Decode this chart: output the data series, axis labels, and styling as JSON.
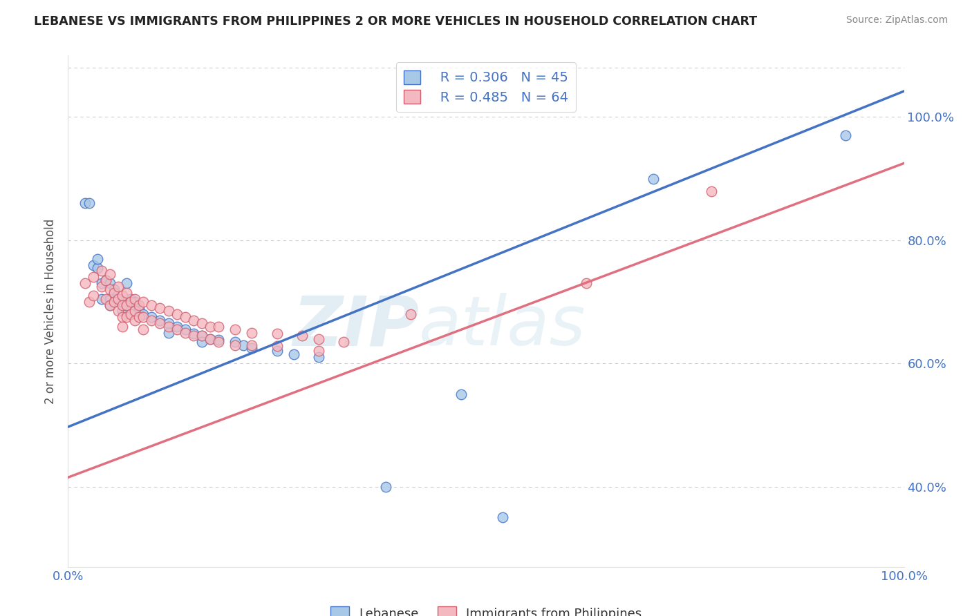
{
  "title": "LEBANESE VS IMMIGRANTS FROM PHILIPPINES 2 OR MORE VEHICLES IN HOUSEHOLD CORRELATION CHART",
  "source": "Source: ZipAtlas.com",
  "ylabel": "2 or more Vehicles in Household",
  "legend_label_1": "Lebanese",
  "legend_label_2": "Immigrants from Philippines",
  "R1": 0.306,
  "N1": 45,
  "R2": 0.485,
  "N2": 64,
  "color_blue": "#A8C8E8",
  "color_pink": "#F4B8C0",
  "line_color_blue": "#4472C4",
  "line_color_pink": "#E07080",
  "dot_edge_blue": "#4472C4",
  "dot_edge_pink": "#D06070",
  "background_color": "#FFFFFF",
  "grid_color": "#CCCCCC",
  "title_color": "#222222",
  "source_color": "#888888",
  "axis_label_color": "#555555",
  "tick_color": "#4472C4",
  "xlim": [
    0.0,
    1.0
  ],
  "ylim": [
    0.27,
    1.1
  ],
  "reg_blue": [
    0.545,
    0.497
  ],
  "reg_pink": [
    0.51,
    0.415
  ],
  "blue_points": [
    [
      0.02,
      0.86
    ],
    [
      0.025,
      0.86
    ],
    [
      0.03,
      0.76
    ],
    [
      0.035,
      0.755
    ],
    [
      0.035,
      0.77
    ],
    [
      0.04,
      0.73
    ],
    [
      0.04,
      0.705
    ],
    [
      0.045,
      0.735
    ],
    [
      0.05,
      0.73
    ],
    [
      0.05,
      0.705
    ],
    [
      0.05,
      0.695
    ],
    [
      0.055,
      0.72
    ],
    [
      0.055,
      0.7
    ],
    [
      0.06,
      0.705
    ],
    [
      0.065,
      0.7
    ],
    [
      0.065,
      0.685
    ],
    [
      0.07,
      0.73
    ],
    [
      0.07,
      0.695
    ],
    [
      0.075,
      0.705
    ],
    [
      0.08,
      0.7
    ],
    [
      0.08,
      0.685
    ],
    [
      0.085,
      0.69
    ],
    [
      0.09,
      0.68
    ],
    [
      0.1,
      0.675
    ],
    [
      0.11,
      0.67
    ],
    [
      0.12,
      0.665
    ],
    [
      0.12,
      0.65
    ],
    [
      0.13,
      0.66
    ],
    [
      0.14,
      0.655
    ],
    [
      0.15,
      0.648
    ],
    [
      0.16,
      0.645
    ],
    [
      0.16,
      0.635
    ],
    [
      0.17,
      0.64
    ],
    [
      0.18,
      0.638
    ],
    [
      0.2,
      0.635
    ],
    [
      0.21,
      0.63
    ],
    [
      0.22,
      0.625
    ],
    [
      0.25,
      0.62
    ],
    [
      0.27,
      0.615
    ],
    [
      0.3,
      0.61
    ],
    [
      0.38,
      0.4
    ],
    [
      0.47,
      0.55
    ],
    [
      0.52,
      0.35
    ],
    [
      0.7,
      0.9
    ],
    [
      0.93,
      0.97
    ]
  ],
  "pink_points": [
    [
      0.02,
      0.73
    ],
    [
      0.025,
      0.7
    ],
    [
      0.03,
      0.74
    ],
    [
      0.03,
      0.71
    ],
    [
      0.04,
      0.75
    ],
    [
      0.04,
      0.725
    ],
    [
      0.045,
      0.735
    ],
    [
      0.045,
      0.705
    ],
    [
      0.05,
      0.745
    ],
    [
      0.05,
      0.72
    ],
    [
      0.05,
      0.695
    ],
    [
      0.055,
      0.715
    ],
    [
      0.055,
      0.7
    ],
    [
      0.06,
      0.725
    ],
    [
      0.06,
      0.705
    ],
    [
      0.06,
      0.685
    ],
    [
      0.065,
      0.71
    ],
    [
      0.065,
      0.695
    ],
    [
      0.065,
      0.675
    ],
    [
      0.065,
      0.66
    ],
    [
      0.07,
      0.715
    ],
    [
      0.07,
      0.695
    ],
    [
      0.07,
      0.675
    ],
    [
      0.075,
      0.7
    ],
    [
      0.075,
      0.68
    ],
    [
      0.08,
      0.705
    ],
    [
      0.08,
      0.685
    ],
    [
      0.08,
      0.67
    ],
    [
      0.085,
      0.695
    ],
    [
      0.085,
      0.675
    ],
    [
      0.09,
      0.7
    ],
    [
      0.09,
      0.675
    ],
    [
      0.09,
      0.655
    ],
    [
      0.1,
      0.695
    ],
    [
      0.1,
      0.67
    ],
    [
      0.11,
      0.69
    ],
    [
      0.11,
      0.665
    ],
    [
      0.12,
      0.685
    ],
    [
      0.12,
      0.66
    ],
    [
      0.13,
      0.68
    ],
    [
      0.13,
      0.655
    ],
    [
      0.14,
      0.675
    ],
    [
      0.14,
      0.65
    ],
    [
      0.15,
      0.67
    ],
    [
      0.15,
      0.645
    ],
    [
      0.16,
      0.665
    ],
    [
      0.16,
      0.645
    ],
    [
      0.17,
      0.66
    ],
    [
      0.17,
      0.64
    ],
    [
      0.18,
      0.66
    ],
    [
      0.18,
      0.635
    ],
    [
      0.2,
      0.655
    ],
    [
      0.2,
      0.63
    ],
    [
      0.22,
      0.65
    ],
    [
      0.22,
      0.63
    ],
    [
      0.25,
      0.648
    ],
    [
      0.25,
      0.628
    ],
    [
      0.28,
      0.645
    ],
    [
      0.3,
      0.64
    ],
    [
      0.3,
      0.62
    ],
    [
      0.33,
      0.635
    ],
    [
      0.41,
      0.68
    ],
    [
      0.62,
      0.73
    ],
    [
      0.77,
      0.88
    ]
  ]
}
